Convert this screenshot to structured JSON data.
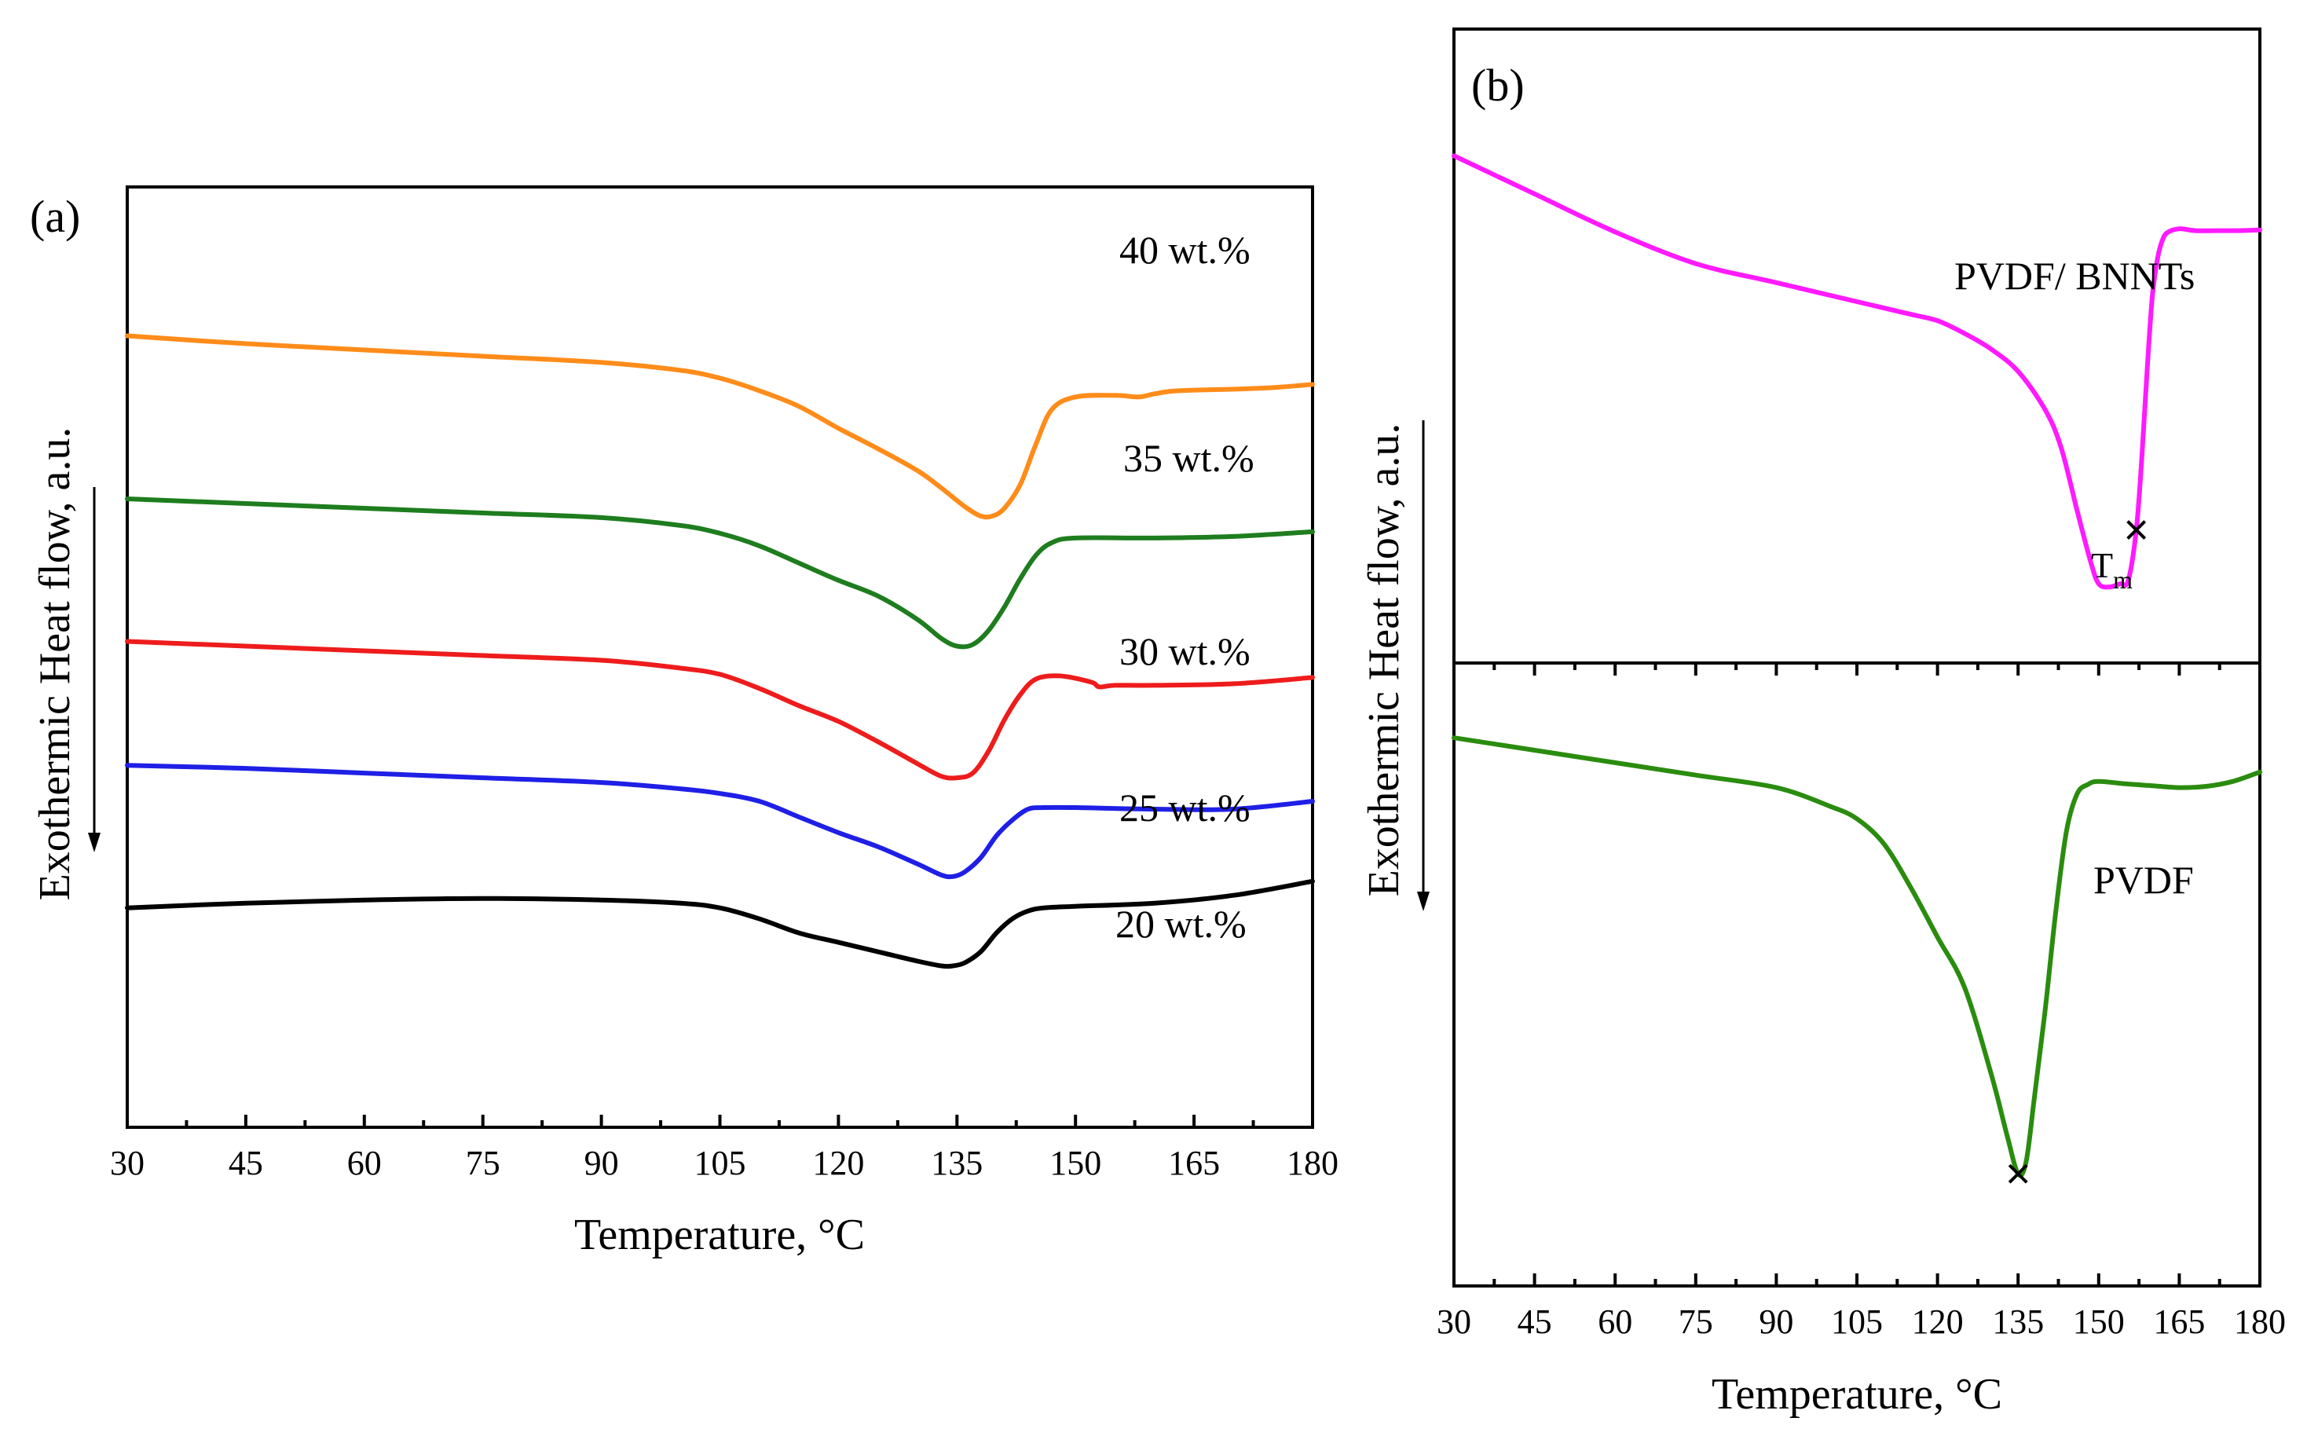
{
  "chart_data": [
    {
      "panel_label": "(a)",
      "type": "line",
      "xlabel": "Temperature, °C",
      "ylabel": "Exothermic Heat flow, a.u.",
      "xlim": [
        30,
        180
      ],
      "xticks": [
        "30",
        "45",
        "60",
        "75",
        "90",
        "105",
        "120",
        "135",
        "150",
        "165",
        "180"
      ],
      "y_arrow": "down",
      "yticks": [],
      "series": [
        {
          "name": "40 wt.%",
          "color": "#ff8c1a",
          "x": [
            30,
            45,
            60,
            75,
            90,
            100,
            105,
            110,
            115,
            120,
            125,
            130,
            133,
            136,
            138,
            139.5,
            141,
            143,
            145,
            147,
            150,
            155,
            158,
            160,
            163,
            170,
            175,
            180
          ],
          "y": [
            50.5,
            50.0,
            49.6,
            49.2,
            48.8,
            48.3,
            47.8,
            47.0,
            46.0,
            44.6,
            43.3,
            41.9,
            40.8,
            39.6,
            39.0,
            39.0,
            39.5,
            41.0,
            43.6,
            45.8,
            46.6,
            46.7,
            46.6,
            46.8,
            47.0,
            47.1,
            47.2,
            47.4
          ]
        },
        {
          "name": "35 wt.%",
          "color": "#1e7d1e",
          "x": [
            30,
            45,
            60,
            75,
            90,
            100,
            105,
            110,
            115,
            120,
            125,
            130,
            133,
            135,
            137,
            139,
            141,
            143,
            145,
            147,
            150,
            160,
            170,
            180
          ],
          "y": [
            40.1,
            39.8,
            39.5,
            39.2,
            38.9,
            38.4,
            37.9,
            37.1,
            36.0,
            34.9,
            33.9,
            32.4,
            31.2,
            30.7,
            30.8,
            31.7,
            33.2,
            35.0,
            36.5,
            37.3,
            37.6,
            37.6,
            37.7,
            38.0
          ]
        },
        {
          "name": "30 wt.%",
          "color": "#ee1c1c",
          "x": [
            30,
            45,
            60,
            75,
            90,
            100,
            105,
            110,
            115,
            120,
            125,
            130,
            133,
            135,
            137,
            139,
            141,
            143,
            145,
            148,
            152,
            153,
            155,
            160,
            170,
            180
          ],
          "y": [
            31.0,
            30.7,
            30.4,
            30.1,
            29.8,
            29.3,
            28.9,
            28.0,
            26.9,
            25.9,
            24.6,
            23.2,
            22.4,
            22.3,
            22.6,
            24.0,
            26.0,
            27.6,
            28.6,
            28.8,
            28.4,
            28.1,
            28.2,
            28.2,
            28.3,
            28.7
          ]
        },
        {
          "name": "25 wt.%",
          "color": "#1f1fe6",
          "x": [
            30,
            45,
            60,
            75,
            90,
            100,
            105,
            110,
            115,
            120,
            125,
            130,
            133,
            134.5,
            136,
            138,
            140,
            142,
            144,
            146,
            150,
            160,
            170,
            180
          ],
          "y": [
            23.1,
            22.9,
            22.6,
            22.3,
            22.0,
            21.6,
            21.3,
            20.8,
            19.8,
            18.8,
            17.9,
            16.8,
            16.1,
            16.0,
            16.3,
            17.2,
            18.6,
            19.6,
            20.3,
            20.4,
            20.4,
            20.3,
            20.3,
            20.8
          ]
        },
        {
          "name": "20 wt.%",
          "color": "#000000",
          "x": [
            30,
            45,
            60,
            75,
            90,
            100,
            105,
            110,
            115,
            120,
            125,
            130,
            133,
            134.5,
            136,
            138,
            140,
            142,
            144,
            146,
            150,
            160,
            170,
            180
          ],
          "y": [
            14.0,
            14.3,
            14.5,
            14.6,
            14.5,
            14.3,
            14.0,
            13.3,
            12.4,
            11.8,
            11.2,
            10.6,
            10.3,
            10.3,
            10.5,
            11.2,
            12.4,
            13.3,
            13.8,
            14.0,
            14.1,
            14.3,
            14.8,
            15.7
          ]
        }
      ],
      "annotations": [
        "40 wt.%",
        "35 wt.%",
        "30 wt.%",
        "25 wt.%",
        "20 wt.%"
      ]
    },
    {
      "panel_label": "(b)",
      "type": "line",
      "subplots": [
        {
          "name": "PVDF/ BNNTs",
          "color": "#ff1aff",
          "x": [
            30,
            45,
            60,
            75,
            90,
            105,
            115,
            120,
            125,
            130,
            135,
            140,
            143,
            146,
            148.5,
            150,
            152,
            154,
            155.5,
            157,
            158,
            159,
            160,
            161,
            162,
            163,
            165,
            168,
            172,
            176,
            180
          ],
          "y": [
            80,
            74,
            68,
            63,
            60,
            57,
            55,
            54,
            52,
            49.5,
            46,
            40,
            34,
            24,
            16,
            12.5,
            12,
            12.5,
            13,
            21,
            32,
            46,
            58,
            64,
            67,
            68,
            68.5,
            68.2,
            68.2,
            68.2,
            68.3
          ],
          "marker": {
            "x": 157,
            "label_main": "T",
            "label_sub": "m"
          }
        },
        {
          "name": "PVDF",
          "color": "#2a8c0f",
          "x": [
            30,
            45,
            60,
            75,
            90,
            100,
            105,
            110,
            115,
            120,
            125,
            130,
            133,
            135,
            136.5,
            138,
            140,
            142,
            144,
            146,
            148,
            150,
            155,
            160,
            165,
            170,
            175,
            180
          ],
          "y": [
            88,
            86,
            84,
            82,
            80,
            77,
            75,
            71,
            64,
            56,
            48,
            34,
            24,
            18,
            20,
            30,
            44,
            60,
            73,
            79,
            80.5,
            81,
            80.6,
            80.3,
            80,
            80.2,
            81,
            82.5
          ],
          "marker": {
            "x": 135
          }
        }
      ],
      "xlabel": "Temperature, °C",
      "ylabel": "Exothermic Heat flow, a.u.",
      "xlim": [
        30,
        180
      ],
      "xticks": [
        "30",
        "45",
        "60",
        "75",
        "90",
        "105",
        "120",
        "135",
        "150",
        "165",
        "180"
      ],
      "y_arrow": "down",
      "yticks": []
    }
  ]
}
